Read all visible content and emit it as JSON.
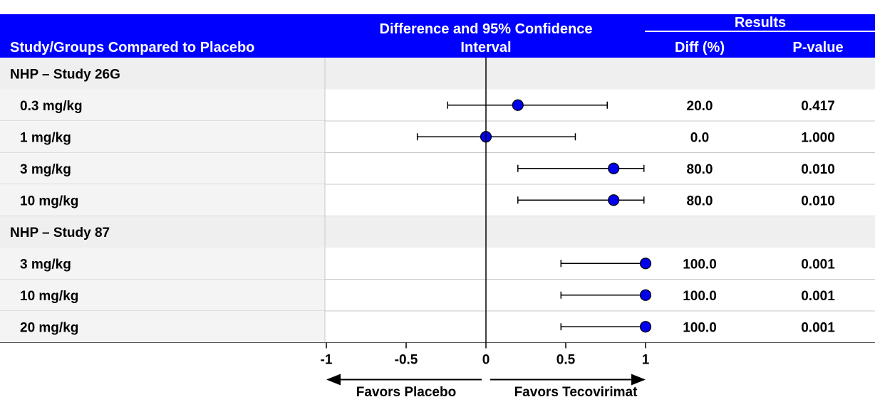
{
  "caption_fragment": "",
  "header": {
    "col_group": "Study/Groups Compared to Placebo",
    "ci_line1": "Difference and 95% Confidence",
    "ci_line2": "Interval",
    "results": "Results",
    "diff": "Diff (%)",
    "pvalue": "P-value"
  },
  "colors": {
    "header_bg": "#0000FF",
    "study_row_bg": "#EFEFEF",
    "label_bg": "#F4F4F4",
    "point_fill": "#0000EE",
    "line": "#000000"
  },
  "axis_captions": {
    "left": "Favors Placebo",
    "right": "Favors Tecovirimat"
  },
  "chart_data": {
    "type": "forest",
    "xlim": [
      -1,
      1
    ],
    "xticks": [
      "-1",
      "-0.5",
      "0",
      "0.5",
      "1"
    ],
    "reference_line": 0,
    "studies": [
      {
        "name": "NHP – Study 26G",
        "rows": [
          {
            "group": "0.3 mg/kg",
            "estimate": 0.2,
            "lower": -0.24,
            "upper": 0.76,
            "diff": "20.0",
            "pvalue": "0.417"
          },
          {
            "group": "1 mg/kg",
            "estimate": 0.0,
            "lower": -0.43,
            "upper": 0.56,
            "diff": "0.0",
            "pvalue": "1.000"
          },
          {
            "group": "3 mg/kg",
            "estimate": 0.8,
            "lower": 0.2,
            "upper": 0.99,
            "diff": "80.0",
            "pvalue": "0.010"
          },
          {
            "group": "10 mg/kg",
            "estimate": 0.8,
            "lower": 0.2,
            "upper": 0.99,
            "diff": "80.0",
            "pvalue": "0.010"
          }
        ]
      },
      {
        "name": "NHP – Study 87",
        "rows": [
          {
            "group": "3 mg/kg",
            "estimate": 1.0,
            "lower": 0.47,
            "upper": 1.0,
            "diff": "100.0",
            "pvalue": "0.001"
          },
          {
            "group": "10 mg/kg",
            "estimate": 1.0,
            "lower": 0.47,
            "upper": 1.0,
            "diff": "100.0",
            "pvalue": "0.001"
          },
          {
            "group": "20 mg/kg",
            "estimate": 1.0,
            "lower": 0.47,
            "upper": 1.0,
            "diff": "100.0",
            "pvalue": "0.001"
          }
        ]
      }
    ]
  }
}
